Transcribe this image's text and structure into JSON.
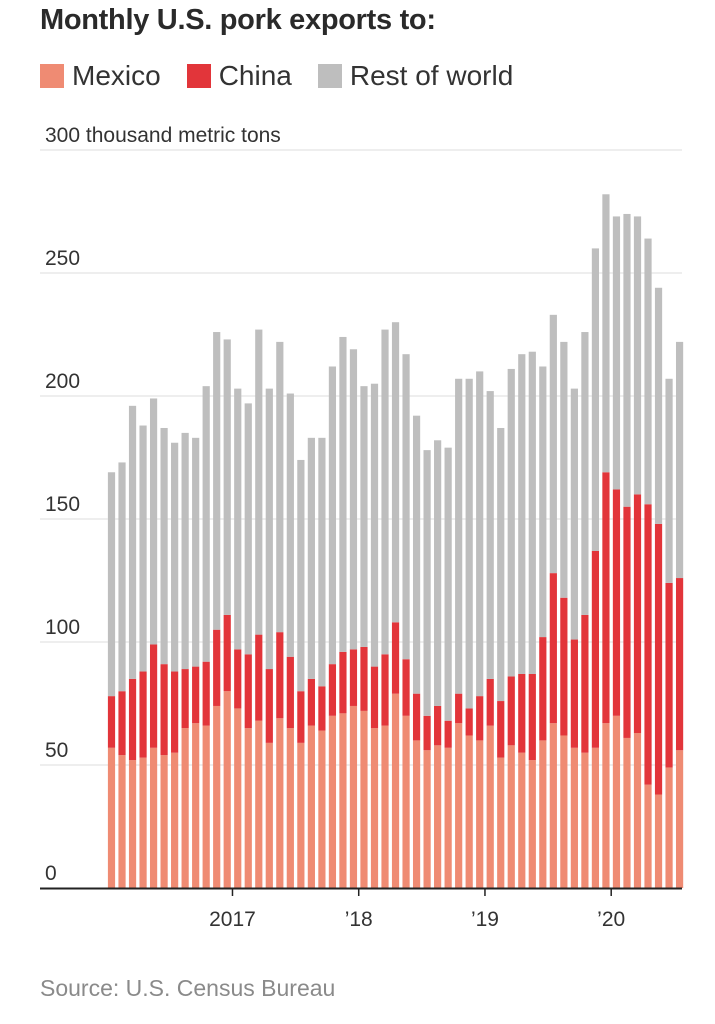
{
  "chart_data": {
    "type": "bar",
    "stacked": true,
    "title": "Monthly U.S. pork exports to:",
    "ylabel": "300 thousand metric tons",
    "ylim": [
      0,
      300
    ],
    "yticks": [
      0,
      50,
      100,
      150,
      200,
      250,
      300
    ],
    "ytick_labels": [
      "0",
      "50",
      "100",
      "150",
      "200",
      "250",
      "300 thousand metric tons"
    ],
    "xtick_labels": [
      {
        "label": "2017",
        "month_index": 11
      },
      {
        "label": "’18",
        "month_index": 23
      },
      {
        "label": "’19",
        "month_index": 35
      },
      {
        "label": "’20",
        "month_index": 47
      }
    ],
    "grid": true,
    "legend_position": "top-left",
    "months": [
      "Jan 2016",
      "Feb 2016",
      "Mar 2016",
      "Apr 2016",
      "May 2016",
      "Jun 2016",
      "Jul 2016",
      "Aug 2016",
      "Sep 2016",
      "Oct 2016",
      "Nov 2016",
      "Dec 2016",
      "Jan 2017",
      "Feb 2017",
      "Mar 2017",
      "Apr 2017",
      "May 2017",
      "Jun 2017",
      "Jul 2017",
      "Aug 2017",
      "Sep 2017",
      "Oct 2017",
      "Nov 2017",
      "Dec 2017",
      "Jan 2018",
      "Feb 2018",
      "Mar 2018",
      "Apr 2018",
      "May 2018",
      "Jun 2018",
      "Jul 2018",
      "Aug 2018",
      "Sep 2018",
      "Oct 2018",
      "Nov 2018",
      "Dec 2018",
      "Jan 2019",
      "Feb 2019",
      "Mar 2019",
      "Apr 2019",
      "May 2019",
      "Jun 2019",
      "Jul 2019",
      "Aug 2019",
      "Sep 2019",
      "Oct 2019",
      "Nov 2019",
      "Dec 2019",
      "Jan 2020",
      "Feb 2020",
      "Mar 2020",
      "Apr 2020",
      "May 2020",
      "Jun 2020",
      "Jul 2020"
    ],
    "series": [
      {
        "name": "Mexico",
        "color": "#ef8b73",
        "values": [
          57,
          54,
          52,
          53,
          57,
          54,
          55,
          65,
          67,
          66,
          74,
          80,
          73,
          65,
          68,
          59,
          69,
          65,
          59,
          66,
          64,
          70,
          71,
          74,
          72,
          65,
          66,
          79,
          70,
          60,
          56,
          58,
          57,
          67,
          62,
          60,
          66,
          53,
          58,
          55,
          52,
          60,
          67,
          62,
          57,
          55,
          57,
          67,
          70,
          61,
          63,
          42,
          38,
          49,
          56
        ]
      },
      {
        "name": "China",
        "color": "#e2353a",
        "values": [
          21,
          26,
          33,
          35,
          42,
          37,
          33,
          24,
          23,
          26,
          31,
          31,
          24,
          30,
          35,
          30,
          35,
          29,
          21,
          19,
          18,
          21,
          25,
          23,
          26,
          25,
          29,
          29,
          23,
          19,
          14,
          16,
          11,
          12,
          11,
          18,
          19,
          23,
          28,
          32,
          35,
          42,
          61,
          56,
          44,
          56,
          80,
          102,
          92,
          94,
          97,
          114,
          110,
          75,
          70
        ]
      },
      {
        "name": "Rest of world",
        "color": "#bebebe",
        "values": [
          91,
          93,
          111,
          100,
          100,
          96,
          93,
          96,
          93,
          112,
          121,
          112,
          106,
          102,
          124,
          114,
          118,
          107,
          94,
          98,
          101,
          121,
          128,
          122,
          106,
          115,
          132,
          122,
          124,
          113,
          108,
          108,
          111,
          128,
          134,
          132,
          117,
          111,
          125,
          130,
          131,
          110,
          105,
          104,
          102,
          115,
          123,
          113,
          111,
          119,
          113,
          108,
          96,
          83,
          96
        ]
      }
    ]
  },
  "legend": {
    "items": [
      {
        "label": "Mexico",
        "color": "#ef8b73"
      },
      {
        "label": "China",
        "color": "#e2353a"
      },
      {
        "label": "Rest of world",
        "color": "#bebebe"
      }
    ]
  },
  "source": "Source: U.S. Census Bureau"
}
